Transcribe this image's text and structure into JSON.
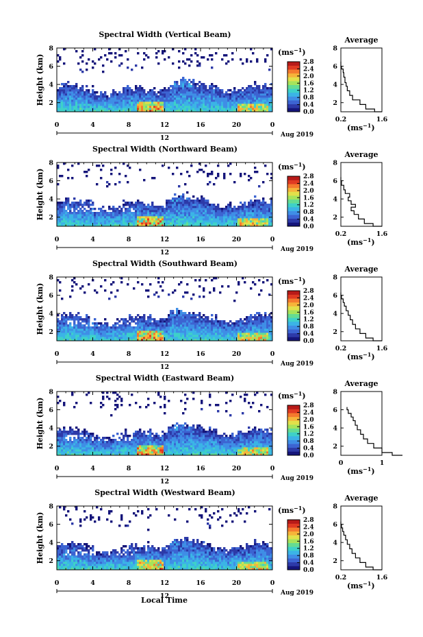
{
  "figure": {
    "xlabel": "Local Time"
  },
  "colors": {
    "colormap": [
      "#15157a",
      "#2d3aa8",
      "#3c64d2",
      "#3f8ee6",
      "#3bb4e6",
      "#3ed1c8",
      "#65dc92",
      "#a7e35a",
      "#e2e04a",
      "#f6b43a",
      "#f47a2e",
      "#e03a22",
      "#b81a18"
    ]
  },
  "chart_data": [
    {
      "type": "heatmap",
      "title": "Spectral Width (Vertical Beam)",
      "ylabel": "Height (km)",
      "yticks": [
        "2",
        "4",
        "6",
        "8"
      ],
      "ylim": [
        1,
        8
      ],
      "xticks": [
        "0",
        "4",
        "8",
        "12",
        "16",
        "20",
        "0"
      ],
      "xlim": [
        0,
        24
      ],
      "date_labels": [
        "12",
        "Aug 2019"
      ],
      "colorbar": {
        "unit": "(ms⁻¹)",
        "ticks": [
          "0.0",
          "0.4",
          "0.8",
          "1.2",
          "1.6",
          "2.0",
          "2.4",
          "2.8"
        ],
        "range": [
          0,
          2.8
        ]
      },
      "profile": {
        "title": "Average",
        "xticks": [
          "0.2",
          "1.6"
        ],
        "xlabel": "(ms⁻¹)",
        "yticks": [
          "2",
          "4",
          "6",
          "8"
        ],
        "x": [
          1.6,
          1.35,
          1.05,
          0.85,
          0.6,
          0.5,
          0.42,
          0.38,
          0.34,
          0.3,
          0.28,
          0.22,
          0.2,
          0.2
        ],
        "y": [
          1.0,
          1.3,
          1.8,
          2.3,
          2.8,
          3.3,
          3.8,
          4.2,
          4.8,
          5.3,
          5.7,
          6.0,
          6.3,
          6.5
        ]
      }
    },
    {
      "type": "heatmap",
      "title": "Spectral Width (Northward Beam)",
      "ylabel": "Height (km)",
      "yticks": [
        "2",
        "4",
        "6",
        "8"
      ],
      "ylim": [
        1,
        8
      ],
      "xticks": [
        "0",
        "4",
        "8",
        "12",
        "16",
        "20",
        "0"
      ],
      "xlim": [
        0,
        24
      ],
      "date_labels": [
        "12",
        "Aug 2019"
      ],
      "colorbar": {
        "unit": "(ms⁻¹)",
        "ticks": [
          "0.0",
          "0.4",
          "0.8",
          "1.2",
          "1.6",
          "2.0",
          "2.4",
          "2.8"
        ],
        "range": [
          0,
          2.8
        ]
      },
      "profile": {
        "title": "Average",
        "xticks": [
          "0.2",
          "1.6"
        ],
        "xlabel": "(ms⁻¹)",
        "yticks": [
          "2",
          "4",
          "6",
          "8"
        ],
        "x": [
          1.6,
          1.3,
          1.0,
          0.8,
          0.65,
          0.55,
          0.7,
          0.55,
          0.45,
          0.5,
          0.35,
          0.3,
          0.22,
          0.2
        ],
        "y": [
          1.0,
          1.3,
          1.8,
          2.3,
          2.7,
          3.1,
          3.4,
          3.8,
          4.2,
          4.6,
          5.0,
          5.5,
          6.0,
          6.4
        ]
      }
    },
    {
      "type": "heatmap",
      "title": "Spectral Width (Southward Beam)",
      "ylabel": "Height (km)",
      "yticks": [
        "2",
        "4",
        "6",
        "8"
      ],
      "ylim": [
        1,
        8
      ],
      "xticks": [
        "0",
        "4",
        "8",
        "12",
        "16",
        "20",
        "0"
      ],
      "xlim": [
        0,
        24
      ],
      "date_labels": [
        "12",
        "Aug 2019"
      ],
      "colorbar": {
        "unit": "(ms⁻¹)",
        "ticks": [
          "0.0",
          "0.4",
          "0.8",
          "1.2",
          "1.6",
          "2.0",
          "2.4",
          "2.8"
        ],
        "range": [
          0,
          2.8
        ]
      },
      "profile": {
        "title": "Average",
        "xticks": [
          "0.2",
          "1.6"
        ],
        "xlabel": "(ms⁻¹)",
        "yticks": [
          "2",
          "4",
          "6",
          "8"
        ],
        "x": [
          1.6,
          1.3,
          1.05,
          0.85,
          0.7,
          0.6,
          0.52,
          0.45,
          0.38,
          0.32,
          0.28,
          0.22,
          0.2
        ],
        "y": [
          1.0,
          1.3,
          1.8,
          2.3,
          2.8,
          3.3,
          3.8,
          4.3,
          4.8,
          5.2,
          5.6,
          6.0,
          6.3
        ]
      }
    },
    {
      "type": "heatmap",
      "title": "Spectral Width (Eastward Beam)",
      "ylabel": "Height (km)",
      "yticks": [
        "2",
        "4",
        "6",
        "8"
      ],
      "ylim": [
        1,
        8
      ],
      "xticks": [
        "0",
        "4",
        "8",
        "12",
        "16",
        "20",
        "0"
      ],
      "xlim": [
        0,
        24
      ],
      "date_labels": [
        "12",
        "Aug 2019"
      ],
      "colorbar": {
        "unit": "(ms⁻¹)",
        "ticks": [
          "0.0",
          "0.4",
          "0.8",
          "1.2",
          "1.6",
          "2.0",
          "2.4",
          "2.8"
        ],
        "range": [
          0,
          2.8
        ]
      },
      "profile": {
        "title": "Average",
        "xticks": [
          "0",
          "1"
        ],
        "xlabel": "(ms⁻¹)",
        "yticks": [
          "2",
          "4",
          "6",
          "8"
        ],
        "x": [
          1.5,
          1.25,
          1.0,
          0.8,
          0.65,
          0.55,
          0.48,
          0.4,
          0.35,
          0.3,
          0.25,
          0.18,
          0.15
        ],
        "y": [
          1.0,
          1.3,
          1.8,
          2.3,
          2.8,
          3.3,
          3.8,
          4.3,
          4.8,
          5.2,
          5.6,
          6.0,
          6.3
        ]
      }
    },
    {
      "type": "heatmap",
      "title": "Spectral Width (Westward Beam)",
      "ylabel": "Height (km)",
      "yticks": [
        "2",
        "4",
        "6",
        "8"
      ],
      "ylim": [
        1,
        8
      ],
      "xticks": [
        "0",
        "4",
        "8",
        "12",
        "16",
        "20",
        "0"
      ],
      "xlim": [
        0,
        24
      ],
      "date_labels": [
        "12",
        "Aug 2019"
      ],
      "colorbar": {
        "unit": "(ms⁻¹)",
        "ticks": [
          "0.0",
          "0.4",
          "0.8",
          "1.2",
          "1.6",
          "2.0",
          "2.4",
          "2.8"
        ],
        "range": [
          0,
          2.8
        ]
      },
      "profile": {
        "title": "Average",
        "xticks": [
          "0.2",
          "1.6"
        ],
        "xlabel": "(ms⁻¹)",
        "yticks": [
          "2",
          "4",
          "6",
          "8"
        ],
        "x": [
          1.6,
          1.3,
          1.05,
          0.85,
          0.7,
          0.58,
          0.5,
          0.42,
          0.36,
          0.3,
          0.26,
          0.22,
          0.2
        ],
        "y": [
          1.0,
          1.3,
          1.8,
          2.3,
          2.8,
          3.3,
          3.8,
          4.3,
          4.8,
          5.2,
          5.6,
          6.0,
          6.3
        ]
      }
    }
  ]
}
